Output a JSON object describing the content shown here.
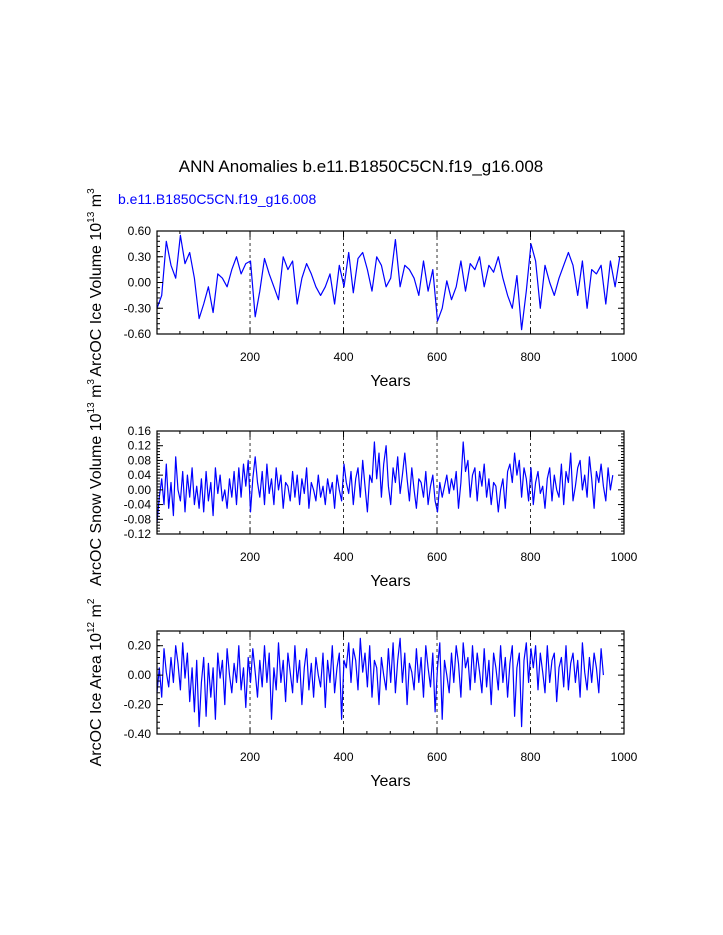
{
  "figure": {
    "title": "ANN Anomalies b.e11.B1850C5CN.f19_g16.008",
    "subtitle": "b.e11.B1850C5CN.f19_g16.008",
    "line_color": "#0000ff"
  },
  "chart_data": [
    {
      "type": "line",
      "ylabel_main": "ArcOC Ice Volume 10",
      "ylabel_sup": "13",
      "ylabel_unit": " m",
      "ylabel_unit_sup": "3",
      "xlabel": "Years",
      "xlim": [
        1,
        1000
      ],
      "ylim": [
        -0.6,
        0.6
      ],
      "yticks": [
        -0.6,
        -0.3,
        0.0,
        0.3,
        0.6
      ],
      "ytick_labels": [
        "-0.60",
        "-0.30",
        "0.00",
        "0.30",
        "0.60"
      ],
      "xticks": [
        200,
        400,
        600,
        800,
        1000
      ],
      "xtick_labels": [
        "200",
        "400",
        "600",
        "800",
        "1000"
      ],
      "grid_x": [
        200,
        400,
        600,
        800
      ],
      "series": [
        {
          "name": "b.e11.B1850C5CN.f19_g16.008",
          "x_start": 1,
          "x_step": 10,
          "values": [
            -0.3,
            -0.15,
            0.48,
            0.2,
            0.05,
            0.55,
            0.22,
            0.35,
            0.05,
            -0.42,
            -0.25,
            -0.05,
            -0.35,
            0.1,
            0.05,
            -0.05,
            0.15,
            0.3,
            0.1,
            0.22,
            0.25,
            -0.4,
            -0.1,
            0.28,
            0.1,
            -0.05,
            -0.2,
            0.3,
            0.15,
            0.25,
            -0.25,
            0.05,
            0.22,
            0.1,
            -0.05,
            -0.15,
            -0.05,
            0.1,
            -0.25,
            0.2,
            -0.05,
            0.35,
            -0.12,
            0.28,
            0.35,
            0.15,
            -0.1,
            0.3,
            0.2,
            -0.05,
            0.05,
            0.5,
            -0.05,
            0.2,
            0.15,
            0.05,
            -0.15,
            0.25,
            -0.1,
            0.15,
            -0.45,
            -0.3,
            0.02,
            -0.2,
            -0.05,
            0.25,
            -0.1,
            0.22,
            0.15,
            0.3,
            -0.05,
            0.2,
            0.12,
            0.3,
            0.05,
            -0.15,
            -0.3,
            0.08,
            -0.55,
            -0.1,
            0.45,
            0.25,
            -0.3,
            0.2,
            0.0,
            -0.15,
            0.05,
            0.2,
            0.35,
            0.2,
            -0.15,
            0.25,
            -0.3,
            0.15,
            0.1,
            0.2,
            -0.25,
            0.25,
            -0.05,
            0.3
          ]
        }
      ]
    },
    {
      "type": "line",
      "ylabel_main": "ArcOC Snow Volume 10",
      "ylabel_sup": "13",
      "ylabel_unit": " m",
      "ylabel_unit_sup": "3",
      "xlabel": "Years",
      "xlim": [
        1,
        1000
      ],
      "ylim": [
        -0.12,
        0.16
      ],
      "yticks": [
        -0.12,
        -0.08,
        -0.04,
        0.0,
        0.04,
        0.08,
        0.12,
        0.16
      ],
      "ytick_labels": [
        "-0.12",
        "-0.08",
        "-0.04",
        "0.00",
        "0.04",
        "0.08",
        "0.12",
        "0.16"
      ],
      "xticks": [
        200,
        400,
        600,
        800,
        1000
      ],
      "xtick_labels": [
        "200",
        "400",
        "600",
        "800",
        "1000"
      ],
      "grid_x": [
        200,
        400,
        600,
        800
      ],
      "series": [
        {
          "name": "b.e11.B1850C5CN.f19_g16.008",
          "x_start": 1,
          "x_step": 5,
          "values": [
            -0.09,
            -0.02,
            0.03,
            -0.04,
            0.07,
            -0.05,
            0.02,
            -0.07,
            0.09,
            0.0,
            -0.03,
            0.05,
            -0.06,
            0.04,
            -0.02,
            0.06,
            -0.04,
            0.01,
            -0.05,
            0.03,
            -0.06,
            0.05,
            -0.03,
            0.02,
            -0.07,
            0.06,
            -0.01,
            0.04,
            -0.03,
            0.0,
            -0.05,
            0.03,
            -0.02,
            0.05,
            -0.04,
            0.06,
            -0.02,
            0.07,
            0.01,
            0.08,
            -0.06,
            0.03,
            0.09,
            0.02,
            -0.02,
            0.05,
            -0.04,
            0.07,
            -0.01,
            0.03,
            -0.04,
            0.06,
            0.0,
            0.04,
            -0.05,
            0.02,
            0.01,
            -0.03,
            0.05,
            -0.02,
            0.04,
            -0.04,
            0.03,
            -0.01,
            0.06,
            -0.05,
            0.02,
            0.0,
            -0.03,
            0.04,
            -0.02,
            0.01,
            -0.04,
            0.03,
            -0.01,
            0.02,
            -0.05,
            0.04,
            0.0,
            -0.03,
            0.07,
            0.02,
            -0.01,
            0.05,
            -0.04,
            0.03,
            0.06,
            -0.02,
            0.08,
            0.01,
            -0.06,
            0.04,
            0.02,
            0.13,
            0.03,
            0.1,
            -0.02,
            0.07,
            0.12,
            0.01,
            -0.04,
            0.06,
            0.02,
            0.09,
            -0.01,
            0.04,
            0.1,
            0.03,
            -0.03,
            0.06,
            0.0,
            -0.05,
            0.03,
            0.02,
            -0.02,
            0.05,
            -0.04,
            0.01,
            0.04,
            -0.03,
            -0.06,
            0.02,
            -0.02,
            0.01,
            0.04,
            -0.01,
            0.03,
            0.0,
            0.05,
            -0.05,
            0.02,
            0.13,
            0.05,
            0.08,
            -0.02,
            0.04,
            0.06,
            -0.03,
            0.05,
            0.01,
            0.07,
            -0.02,
            0.03,
            -0.04,
            0.02,
            0.01,
            -0.06,
            0.0,
            0.03,
            -0.05,
            0.05,
            0.07,
            0.02,
            0.1,
            0.04,
            0.08,
            -0.02,
            0.06,
            0.03,
            -0.03,
            0.06,
            -0.04,
            0.02,
            0.05,
            -0.01,
            0.01,
            -0.05,
            0.03,
            0.06,
            -0.03,
            0.04,
            0.0,
            -0.02,
            0.07,
            -0.04,
            0.05,
            0.02,
            0.1,
            -0.03,
            0.01,
            0.06,
            0.08,
            0.0,
            0.04,
            -0.02,
            0.09,
            0.03,
            -0.05,
            0.05,
            0.02,
            0.07,
            0.01,
            -0.03,
            0.06,
            0.0,
            0.04
          ]
        }
      ]
    },
    {
      "type": "line",
      "ylabel_main": "ArcOC Ice Area 10",
      "ylabel_sup": "12",
      "ylabel_unit": " m",
      "ylabel_unit_sup": "2",
      "xlabel": "Years",
      "xlim": [
        1,
        1000
      ],
      "ylim": [
        -0.4,
        0.3
      ],
      "yticks": [
        -0.4,
        -0.2,
        0.0,
        0.2
      ],
      "ytick_labels": [
        "-0.40",
        "-0.20",
        "0.00",
        "0.20"
      ],
      "xticks": [
        200,
        400,
        600,
        800,
        1000
      ],
      "xtick_labels": [
        "200",
        "400",
        "600",
        "800",
        "1000"
      ],
      "grid_x": [
        200,
        400,
        600,
        800
      ],
      "series": [
        {
          "name": "b.e11.B1850C5CN.f19_g16.008",
          "x_start": 1,
          "x_step": 5,
          "values": [
            -0.12,
            0.05,
            -0.15,
            0.18,
            0.02,
            -0.08,
            0.12,
            -0.05,
            0.2,
            0.08,
            -0.1,
            0.22,
            -0.02,
            0.15,
            -0.18,
            0.05,
            -0.25,
            0.1,
            -0.35,
            -0.05,
            0.12,
            -0.28,
            0.08,
            -0.15,
            0.05,
            -0.3,
            0.15,
            -0.02,
            0.1,
            -0.2,
            0.18,
            0.0,
            -0.12,
            0.08,
            -0.05,
            0.2,
            -0.1,
            0.05,
            -0.22,
            0.12,
            -0.05,
            0.18,
            0.02,
            -0.15,
            0.1,
            -0.08,
            0.2,
            -0.05,
            0.15,
            -0.3,
            0.05,
            -0.1,
            0.22,
            -0.05,
            0.1,
            -0.18,
            0.15,
            0.02,
            -0.12,
            0.2,
            -0.05,
            0.1,
            -0.2,
            0.05,
            0.18,
            -0.1,
            0.08,
            -0.15,
            0.12,
            0.0,
            -0.08,
            0.15,
            -0.22,
            0.1,
            -0.05,
            0.2,
            -0.12,
            0.05,
            0.15,
            -0.3,
            0.1,
            0.05,
            0.22,
            -0.05,
            0.18,
            0.1,
            -0.1,
            0.25,
            0.02,
            0.15,
            -0.08,
            0.2,
            -0.15,
            0.1,
            0.05,
            -0.2,
            0.12,
            0.0,
            -0.1,
            0.18,
            -0.05,
            0.22,
            -0.12,
            0.1,
            0.25,
            -0.05,
            0.15,
            -0.2,
            0.08,
            0.02,
            -0.1,
            0.18,
            -0.05,
            0.12,
            -0.15,
            0.2,
            0.05,
            -0.08,
            0.15,
            -0.25,
            0.05,
            0.22,
            -0.3,
            0.1,
            0.0,
            -0.12,
            0.15,
            -0.05,
            0.2,
            0.08,
            -0.15,
            0.22,
            0.05,
            0.12,
            -0.1,
            0.2,
            -0.05,
            0.15,
            0.02,
            -0.12,
            0.18,
            -0.08,
            0.1,
            -0.2,
            0.15,
            0.05,
            -0.1,
            0.2,
            -0.05,
            0.12,
            -0.15,
            0.08,
            0.2,
            -0.28,
            0.05,
            0.15,
            -0.35,
            0.1,
            0.22,
            -0.05,
            0.18,
            0.05,
            0.2,
            -0.1,
            0.15,
            0.02,
            -0.12,
            0.2,
            -0.05,
            0.1,
            0.15,
            -0.18,
            0.05,
            0.12,
            -0.08,
            0.2,
            -0.1,
            0.08,
            0.15,
            -0.05,
            0.1,
            -0.15,
            0.22,
            0.02,
            -0.1,
            0.12,
            -0.05,
            0.15,
            0.05,
            -0.12,
            0.18,
            0.0
          ]
        }
      ]
    }
  ]
}
